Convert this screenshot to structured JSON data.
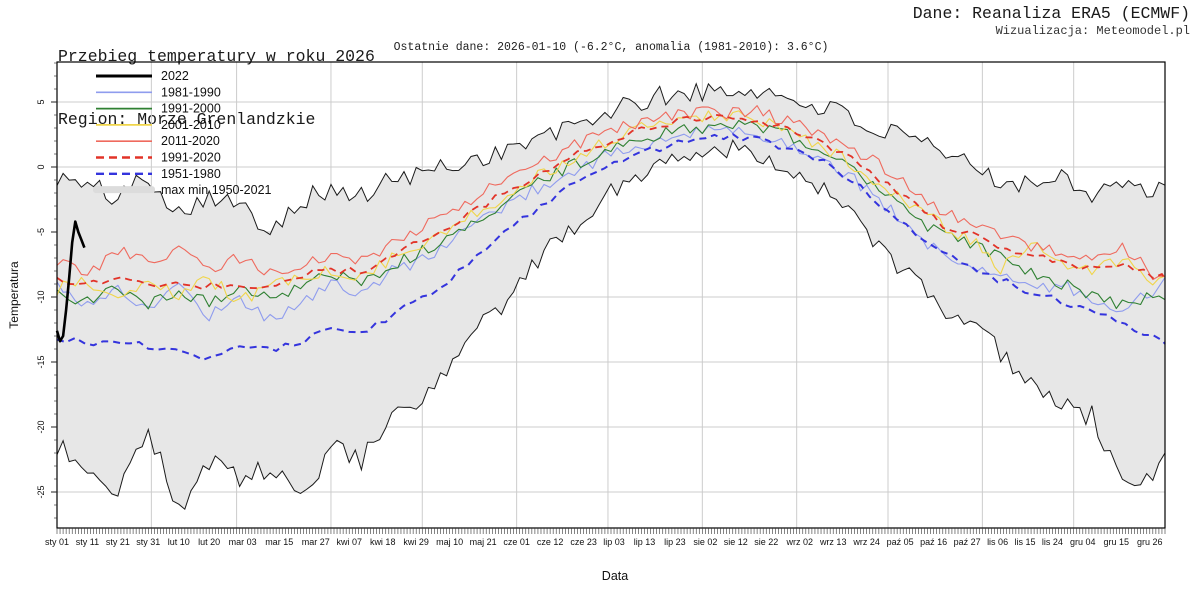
{
  "header": {
    "title": "Przebieg temperatury w roku 2026",
    "region": "Region: Morze Grenlandzkie",
    "source": "Dane: Reanaliza ERA5 (ECMWF)",
    "visualization": "Wizualizacja: Meteomodel.pl",
    "last_data": "Ostatnie dane: 2026-01-10 (-6.2°C, anomalia (1981-2010): 3.6°C)"
  },
  "legend": {
    "items": [
      {
        "label": "2022",
        "swatch": "line",
        "color": "#000000",
        "width": 3,
        "dash": ""
      },
      {
        "label": "1981-1990",
        "swatch": "line",
        "color": "#8f9cee",
        "width": 1.7,
        "dash": ""
      },
      {
        "label": "1991-2000",
        "swatch": "line",
        "color": "#2f8032",
        "width": 1.7,
        "dash": ""
      },
      {
        "label": "2001-2010",
        "swatch": "line",
        "color": "#f0d54a",
        "width": 1.7,
        "dash": ""
      },
      {
        "label": "2011-2020",
        "swatch": "line",
        "color": "#ef6a5e",
        "width": 1.7,
        "dash": ""
      },
      {
        "label": "1991-2020",
        "swatch": "line",
        "color": "#e23328",
        "width": 2.4,
        "dash": "8 5"
      },
      {
        "label": "1951-1980",
        "swatch": "line",
        "color": "#3434dd",
        "width": 2.4,
        "dash": "8 5"
      },
      {
        "label": "max min 1950-2021",
        "swatch": "band",
        "color": "#dcdcdc"
      }
    ]
  },
  "chart_data": {
    "type": "line",
    "title": "Przebieg temperatury w roku 2026 — Morze Grenlandzkie",
    "xlabel": "Data",
    "ylabel": "Temperatura",
    "x_unit": "day_of_year",
    "xlim": [
      1,
      365
    ],
    "ylim": [
      -27.8,
      8.1
    ],
    "yticks": [
      5,
      0,
      -5,
      -10,
      -15,
      -20,
      -25
    ],
    "grid": true,
    "legend_position": "top-left",
    "background": "#ffffff",
    "month_start_days": [
      32,
      60,
      91,
      121,
      152,
      182,
      213,
      244,
      274,
      305,
      335
    ],
    "xticks": [
      {
        "label": "sty 01",
        "day": 1
      },
      {
        "label": "sty 11",
        "day": 11
      },
      {
        "label": "sty 21",
        "day": 21
      },
      {
        "label": "sty 31",
        "day": 31
      },
      {
        "label": "lut 10",
        "day": 41
      },
      {
        "label": "lut 20",
        "day": 51
      },
      {
        "label": "mar 03",
        "day": 62
      },
      {
        "label": "mar 15",
        "day": 74
      },
      {
        "label": "mar 27",
        "day": 86
      },
      {
        "label": "kwi 07",
        "day": 97
      },
      {
        "label": "kwi 18",
        "day": 108
      },
      {
        "label": "kwi 29",
        "day": 119
      },
      {
        "label": "maj 10",
        "day": 130
      },
      {
        "label": "maj 21",
        "day": 141
      },
      {
        "label": "cze 01",
        "day": 152
      },
      {
        "label": "cze 12",
        "day": 163
      },
      {
        "label": "cze 23",
        "day": 174
      },
      {
        "label": "lip 03",
        "day": 184
      },
      {
        "label": "lip 13",
        "day": 194
      },
      {
        "label": "lip 23",
        "day": 204
      },
      {
        "label": "sie 02",
        "day": 214
      },
      {
        "label": "sie 12",
        "day": 224
      },
      {
        "label": "sie 22",
        "day": 234
      },
      {
        "label": "wrz 02",
        "day": 245
      },
      {
        "label": "wrz 13",
        "day": 256
      },
      {
        "label": "wrz 24",
        "day": 267
      },
      {
        "label": "paź 05",
        "day": 278
      },
      {
        "label": "paź 16",
        "day": 289
      },
      {
        "label": "paź 27",
        "day": 300
      },
      {
        "label": "lis 06",
        "day": 310
      },
      {
        "label": "lis 15",
        "day": 319
      },
      {
        "label": "lis 24",
        "day": 328
      },
      {
        "label": "gru 04",
        "day": 338
      },
      {
        "label": "gru 15",
        "day": 349
      },
      {
        "label": "gru 26",
        "day": 360
      }
    ],
    "control_days": [
      1,
      11,
      21,
      31,
      41,
      51,
      61,
      71,
      81,
      91,
      101,
      111,
      121,
      131,
      141,
      151,
      161,
      171,
      181,
      191,
      201,
      211,
      221,
      231,
      241,
      251,
      261,
      271,
      281,
      291,
      301,
      311,
      321,
      331,
      341,
      351,
      361,
      365
    ],
    "band": {
      "name": "max min 1950-2021",
      "fill": "#e7e7e7",
      "edge_color": "#1a1a1a",
      "noise": 0.85,
      "max": [
        -0.8,
        -1.5,
        -2.3,
        -0.6,
        -3.5,
        -2.0,
        -3.2,
        -4.6,
        -2.5,
        -1.8,
        -2.3,
        -1.0,
        -0.5,
        0.2,
        0.8,
        1.5,
        2.3,
        3.1,
        4.2,
        4.8,
        5.5,
        5.8,
        5.6,
        6.0,
        5.2,
        4.8,
        3.9,
        2.7,
        2.1,
        1.0,
        0.2,
        -0.9,
        -1.3,
        -0.5,
        -2.0,
        -1.0,
        -2.4,
        -1.4
      ],
      "min": [
        -21.5,
        -23.2,
        -24.8,
        -20.2,
        -26.4,
        -22.6,
        -24.0,
        -23.2,
        -25.6,
        -21.6,
        -22.5,
        -19.6,
        -18.0,
        -15.4,
        -12.0,
        -9.8,
        -6.8,
        -4.4,
        -2.4,
        -0.5,
        0.5,
        1.0,
        1.5,
        1.2,
        0.0,
        -1.6,
        -3.6,
        -5.8,
        -8.6,
        -10.6,
        -12.5,
        -14.2,
        -16.5,
        -18.4,
        -19.2,
        -24.4,
        -24.0,
        -22.0
      ]
    },
    "series": [
      {
        "name": "1981-1990",
        "color": "#8f9cee",
        "width": 1.1,
        "dash": "",
        "noise": 0.5,
        "values": [
          -9.0,
          -10.6,
          -9.4,
          -11.0,
          -9.0,
          -11.4,
          -10.0,
          -11.8,
          -10.4,
          -9.0,
          -9.8,
          -8.0,
          -7.2,
          -5.5,
          -4.0,
          -2.5,
          -1.4,
          -0.3,
          0.8,
          1.5,
          2.1,
          2.6,
          2.9,
          2.5,
          1.9,
          0.8,
          -0.6,
          -2.5,
          -4.6,
          -6.8,
          -7.5,
          -8.0,
          -9.5,
          -9.0,
          -10.2,
          -10.8,
          -9.6,
          -8.5
        ]
      },
      {
        "name": "1991-2000",
        "color": "#2f8032",
        "width": 1.1,
        "dash": "",
        "noise": 0.5,
        "values": [
          -9.8,
          -10.3,
          -9.2,
          -10.5,
          -9.6,
          -10.4,
          -9.3,
          -10.2,
          -9.0,
          -8.3,
          -8.8,
          -7.5,
          -6.5,
          -5.2,
          -3.8,
          -2.2,
          -1.0,
          0.2,
          1.2,
          2.0,
          2.6,
          3.0,
          3.2,
          3.0,
          2.4,
          1.5,
          0.2,
          -1.6,
          -3.4,
          -5.2,
          -5.9,
          -7.0,
          -8.2,
          -9.0,
          -9.8,
          -10.6,
          -9.8,
          -10.2
        ]
      },
      {
        "name": "2001-2010",
        "color": "#f0d54a",
        "width": 1.1,
        "dash": "",
        "noise": 0.5,
        "values": [
          -9.4,
          -8.8,
          -9.8,
          -9.0,
          -9.9,
          -8.6,
          -10.3,
          -9.2,
          -8.6,
          -8.0,
          -8.4,
          -7.0,
          -6.0,
          -4.5,
          -3.2,
          -1.8,
          -0.5,
          0.8,
          1.9,
          2.8,
          3.4,
          3.8,
          4.0,
          3.6,
          2.8,
          1.8,
          0.5,
          -1.2,
          -3.0,
          -4.4,
          -5.5,
          -7.8,
          -5.8,
          -7.4,
          -8.2,
          -7.0,
          -8.8,
          -8.4
        ]
      },
      {
        "name": "2011-2020",
        "color": "#ef6a5e",
        "width": 1.1,
        "dash": "",
        "noise": 0.5,
        "values": [
          -7.2,
          -8.2,
          -6.4,
          -7.5,
          -6.3,
          -7.8,
          -7.0,
          -8.3,
          -7.4,
          -6.8,
          -7.2,
          -5.8,
          -4.6,
          -3.2,
          -2.0,
          -0.8,
          0.4,
          1.6,
          2.6,
          3.4,
          3.9,
          4.2,
          4.1,
          4.3,
          3.5,
          2.6,
          1.4,
          0.2,
          -1.4,
          -3.2,
          -4.2,
          -5.3,
          -6.0,
          -6.8,
          -7.4,
          -6.2,
          -8.2,
          -8.4
        ]
      },
      {
        "name": "1991-2020",
        "color": "#e23328",
        "width": 1.8,
        "dash": "7 5",
        "noise": 0.3,
        "values": [
          -8.7,
          -9.0,
          -8.6,
          -9.1,
          -8.8,
          -9.2,
          -8.9,
          -9.3,
          -8.5,
          -7.8,
          -8.1,
          -6.8,
          -5.7,
          -4.3,
          -3.0,
          -1.6,
          -0.4,
          0.9,
          1.9,
          2.7,
          3.3,
          3.7,
          3.8,
          3.6,
          2.9,
          2.0,
          0.7,
          -0.9,
          -2.6,
          -4.3,
          -5.2,
          -6.1,
          -6.7,
          -7.3,
          -7.9,
          -7.5,
          -8.3,
          -8.6
        ]
      },
      {
        "name": "1951-1980",
        "color": "#3434dd",
        "width": 2.0,
        "dash": "7 5",
        "noise": 0.3,
        "values": [
          -13.0,
          -13.6,
          -13.2,
          -13.8,
          -14.2,
          -14.8,
          -13.9,
          -14.0,
          -13.4,
          -12.6,
          -12.8,
          -11.4,
          -10.2,
          -8.4,
          -6.6,
          -4.6,
          -2.9,
          -1.2,
          0.0,
          0.9,
          1.6,
          2.1,
          2.3,
          2.1,
          1.5,
          0.6,
          -0.8,
          -2.8,
          -4.8,
          -6.6,
          -7.6,
          -8.7,
          -9.6,
          -10.4,
          -11.2,
          -12.0,
          -13.0,
          -13.6
        ]
      },
      {
        "name": "2022",
        "color": "#000000",
        "width": 2.6,
        "dash": "",
        "noise": 0,
        "days": [
          1,
          2,
          3,
          4,
          5,
          6,
          7,
          8,
          9,
          10
        ],
        "values": [
          -12.6,
          -13.4,
          -13.0,
          -11.0,
          -8.5,
          -5.8,
          -4.2,
          -5.0,
          -5.6,
          -6.2
        ]
      }
    ]
  }
}
